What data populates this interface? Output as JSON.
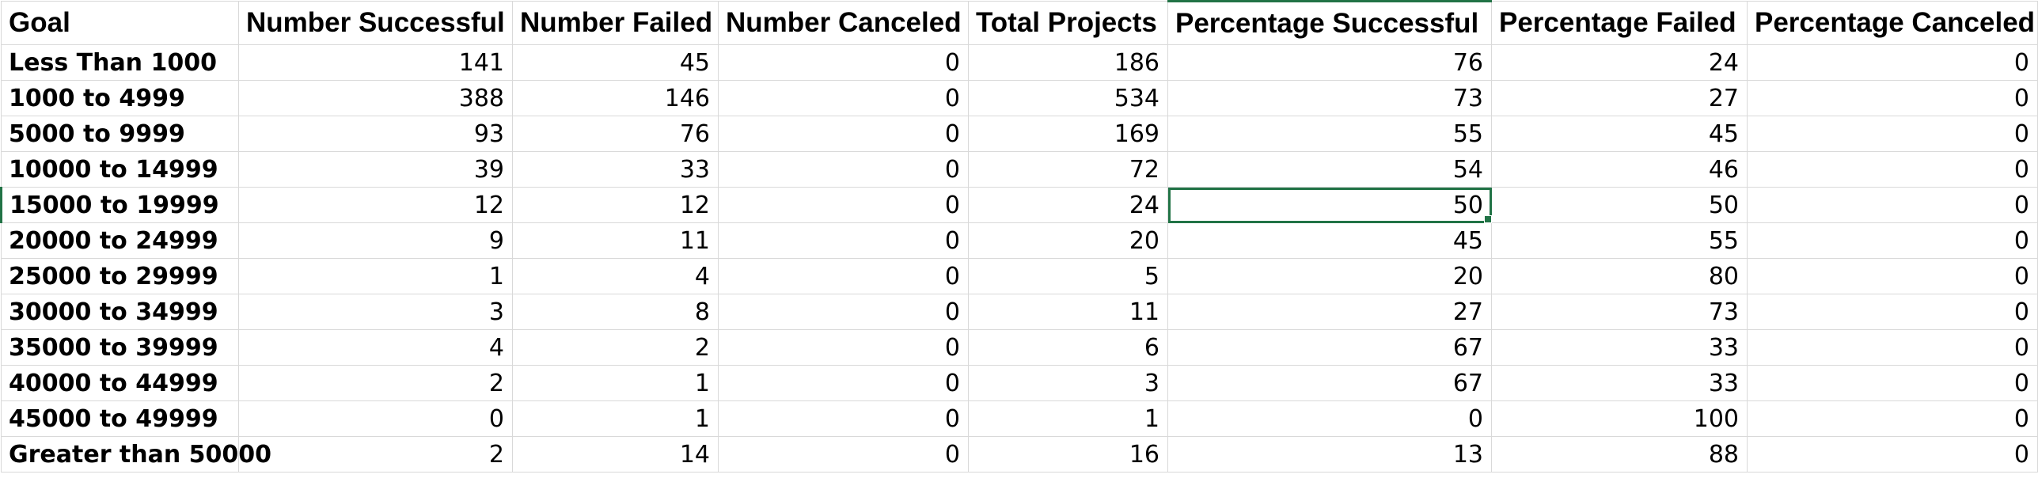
{
  "headers": [
    "Goal",
    "Number Successful",
    "Number Failed",
    "Number Canceled",
    "Total Projects",
    "Percentage Successful",
    "Percentage Failed",
    "Percentage Canceled"
  ],
  "rows": [
    [
      "Less Than 1000",
      "141",
      "45",
      "0",
      "186",
      "76",
      "24",
      "0"
    ],
    [
      "1000 to 4999",
      "388",
      "146",
      "0",
      "534",
      "73",
      "27",
      "0"
    ],
    [
      "5000 to 9999",
      "93",
      "76",
      "0",
      "169",
      "55",
      "45",
      "0"
    ],
    [
      "10000 to 14999",
      "39",
      "33",
      "0",
      "72",
      "54",
      "46",
      "0"
    ],
    [
      "15000 to 19999",
      "12",
      "12",
      "0",
      "24",
      "50",
      "50",
      "0"
    ],
    [
      "20000 to 24999",
      "9",
      "11",
      "0",
      "20",
      "45",
      "55",
      "0"
    ],
    [
      "25000 to 29999",
      "1",
      "4",
      "0",
      "5",
      "20",
      "80",
      "0"
    ],
    [
      "30000 to 34999",
      "3",
      "8",
      "0",
      "11",
      "27",
      "73",
      "0"
    ],
    [
      "35000 to 39999",
      "4",
      "2",
      "0",
      "6",
      "67",
      "33",
      "0"
    ],
    [
      "40000 to 44999",
      "2",
      "1",
      "0",
      "3",
      "67",
      "33",
      "0"
    ],
    [
      "45000 to 49999",
      "0",
      "1",
      "0",
      "1",
      "0",
      "100",
      "0"
    ],
    [
      "Greater than 50000",
      "2",
      "14",
      "0",
      "16",
      "13",
      "88",
      "0"
    ]
  ],
  "selection": {
    "row": 4,
    "column": 5,
    "accent_color": "#217346"
  }
}
